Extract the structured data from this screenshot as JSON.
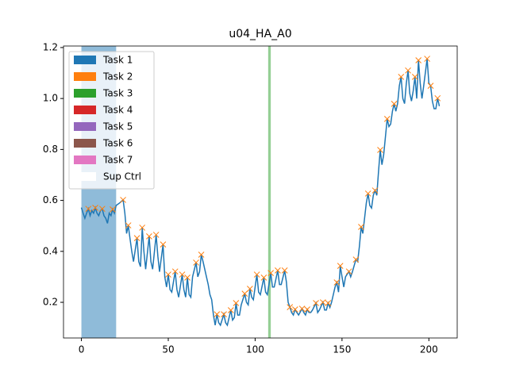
{
  "chart_data": {
    "type": "line",
    "title": "u04_HA_A0",
    "x": [
      0,
      1,
      2,
      3,
      4,
      5,
      6,
      7,
      8,
      9,
      10,
      11,
      12,
      13,
      14,
      15,
      16,
      17,
      18,
      19,
      20,
      22,
      24,
      25,
      26,
      27,
      28,
      29,
      30,
      32,
      33,
      34,
      35,
      36,
      37,
      39,
      40,
      41,
      43,
      44,
      45,
      47,
      48,
      49,
      50,
      51,
      52,
      54,
      55,
      56,
      58,
      59,
      60,
      61,
      62,
      63,
      64,
      66,
      67,
      68,
      69,
      70,
      72,
      73,
      74,
      75,
      76,
      77,
      78,
      79,
      80,
      82,
      83,
      84,
      86,
      87,
      88,
      89,
      90,
      91,
      92,
      94,
      95,
      96,
      97,
      98,
      99,
      101,
      102,
      103,
      105,
      106,
      107,
      109,
      110,
      111,
      113,
      114,
      115,
      117,
      118,
      119,
      120,
      121,
      122,
      123,
      124,
      125,
      127,
      128,
      129,
      130,
      131,
      132,
      133,
      135,
      136,
      137,
      139,
      140,
      141,
      142,
      143,
      144,
      146,
      147,
      148,
      149,
      150,
      151,
      152,
      154,
      155,
      156,
      158,
      159,
      160,
      161,
      162,
      163,
      164,
      165,
      166,
      167,
      168,
      169,
      170,
      171,
      172,
      173,
      174,
      175,
      176,
      177,
      178,
      179,
      180,
      181,
      182,
      183,
      184,
      185,
      186,
      187,
      188,
      189,
      190,
      191,
      192,
      193,
      194,
      195,
      196,
      197,
      199,
      200,
      201,
      202,
      203,
      204,
      205,
      206
    ],
    "series": [
      {
        "color": "#1f77b4",
        "values": [
          0.572,
          0.55,
          0.53,
          0.55,
          0.567,
          0.54,
          0.56,
          0.55,
          0.571,
          0.55,
          0.54,
          0.56,
          0.567,
          0.54,
          0.53,
          0.51,
          0.55,
          0.54,
          0.565,
          0.55,
          0.58,
          0.59,
          0.602,
          0.55,
          0.47,
          0.502,
          0.45,
          0.4,
          0.36,
          0.452,
          0.36,
          0.34,
          0.493,
          0.4,
          0.33,
          0.459,
          0.36,
          0.33,
          0.465,
          0.38,
          0.32,
          0.427,
          0.3,
          0.26,
          0.309,
          0.25,
          0.24,
          0.321,
          0.25,
          0.22,
          0.309,
          0.25,
          0.22,
          0.297,
          0.23,
          0.22,
          0.3,
          0.356,
          0.3,
          0.32,
          0.387,
          0.36,
          0.3,
          0.27,
          0.23,
          0.21,
          0.15,
          0.11,
          0.153,
          0.12,
          0.11,
          0.153,
          0.12,
          0.11,
          0.169,
          0.13,
          0.14,
          0.197,
          0.15,
          0.15,
          0.19,
          0.234,
          0.2,
          0.19,
          0.253,
          0.22,
          0.21,
          0.309,
          0.24,
          0.23,
          0.297,
          0.24,
          0.23,
          0.315,
          0.26,
          0.26,
          0.325,
          0.27,
          0.27,
          0.325,
          0.28,
          0.2,
          0.181,
          0.16,
          0.15,
          0.172,
          0.16,
          0.15,
          0.175,
          0.16,
          0.15,
          0.172,
          0.16,
          0.16,
          0.17,
          0.197,
          0.16,
          0.17,
          0.2,
          0.17,
          0.17,
          0.197,
          0.18,
          0.2,
          0.26,
          0.278,
          0.24,
          0.343,
          0.3,
          0.26,
          0.3,
          0.321,
          0.3,
          0.32,
          0.368,
          0.36,
          0.42,
          0.496,
          0.47,
          0.53,
          0.59,
          0.627,
          0.58,
          0.57,
          0.62,
          0.639,
          0.62,
          0.71,
          0.798,
          0.74,
          0.78,
          0.85,
          0.92,
          0.89,
          0.9,
          0.95,
          0.979,
          0.95,
          0.98,
          1.05,
          1.085,
          1.0,
          0.98,
          1.06,
          1.11,
          1.02,
          0.99,
          1.03,
          1.085,
          1.0,
          1.15,
          1.06,
          1.0,
          1.05,
          1.156,
          1.06,
          1.05,
          0.99,
          0.96,
          0.96,
          1.001,
          0.97
        ]
      }
    ],
    "markers": {
      "color": "#ff7f0e",
      "x": [
        4,
        8,
        12,
        18,
        24,
        27,
        32,
        35,
        39,
        43,
        47,
        50,
        54,
        58,
        61,
        66,
        69,
        78,
        82,
        86,
        89,
        94,
        97,
        101,
        105,
        109,
        113,
        117,
        120,
        123,
        127,
        130,
        135,
        139,
        142,
        147,
        149,
        154,
        158,
        161,
        165,
        169,
        172,
        176,
        180,
        184,
        188,
        192,
        194,
        199,
        201,
        205
      ],
      "values": [
        0.567,
        0.571,
        0.567,
        0.565,
        0.602,
        0.502,
        0.452,
        0.493,
        0.459,
        0.465,
        0.427,
        0.309,
        0.321,
        0.309,
        0.297,
        0.356,
        0.387,
        0.153,
        0.153,
        0.169,
        0.197,
        0.234,
        0.253,
        0.309,
        0.297,
        0.315,
        0.325,
        0.325,
        0.181,
        0.172,
        0.175,
        0.172,
        0.197,
        0.2,
        0.197,
        0.278,
        0.343,
        0.321,
        0.368,
        0.496,
        0.627,
        0.639,
        0.798,
        0.92,
        0.979,
        1.085,
        1.11,
        1.085,
        1.15,
        1.156,
        1.05,
        1.001
      ]
    },
    "legend": [
      {
        "name": "Task 1",
        "color": "#1f77b4",
        "span": [
          0,
          20
        ]
      },
      {
        "name": "Task 2",
        "color": "#ff7f0e"
      },
      {
        "name": "Task 3",
        "color": "#2ca02c",
        "span": [
          107.5,
          109
        ]
      },
      {
        "name": "Task 4",
        "color": "#d62728"
      },
      {
        "name": "Task 5",
        "color": "#9467bd"
      },
      {
        "name": "Task 6",
        "color": "#8c564b"
      },
      {
        "name": "Task 7",
        "color": "#e377c2"
      },
      {
        "name": "Sup Ctrl",
        "color": "#ffffff"
      }
    ],
    "legend_position": "upper left",
    "xlim": [
      -10.3,
      216.3
    ],
    "xticks": [
      0,
      50,
      100,
      150,
      200
    ],
    "ylim": [
      0.06,
      1.206
    ],
    "yticks": [
      0.2,
      0.4,
      0.6,
      0.8,
      {
        "value": 1,
        "label": "1.0"
      },
      1.2
    ]
  }
}
